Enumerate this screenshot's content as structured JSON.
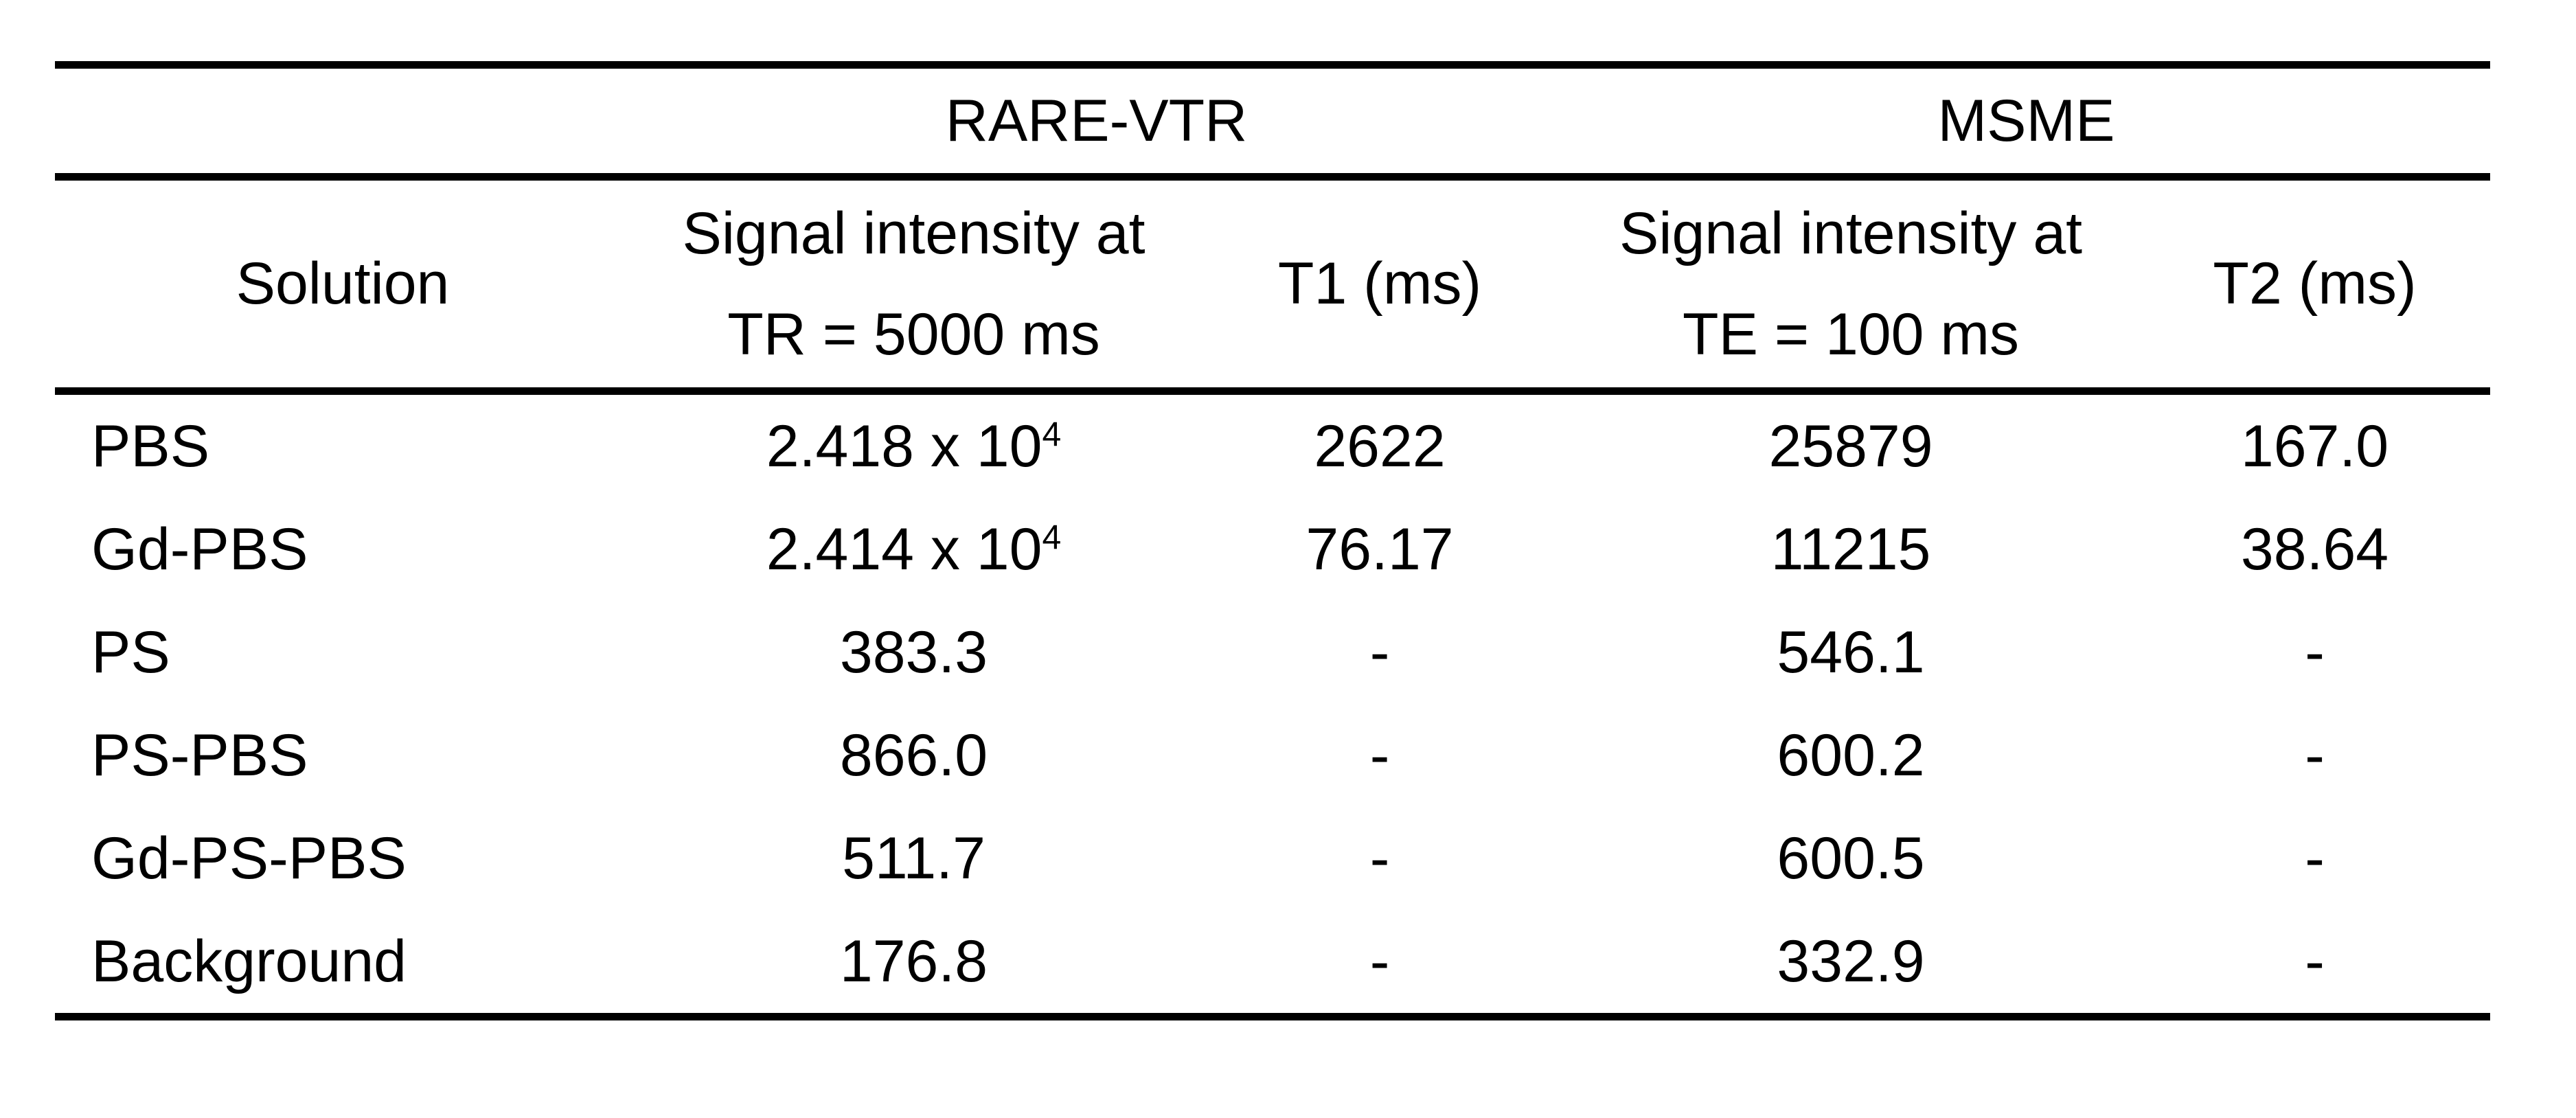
{
  "colors": {
    "text": "#000000",
    "rule": "#000000",
    "background": "#ffffff"
  },
  "header": {
    "group_rare": "RARE-VTR",
    "group_msme": "MSME",
    "col_solution": "Solution",
    "col_rare_signal_line1": "Signal intensity at",
    "col_rare_signal_line2": "TR = 5000 ms",
    "col_t1": "T1 (ms)",
    "col_msme_signal_line1": "Signal intensity at",
    "col_msme_signal_line2": "TE = 100 ms",
    "col_t2": "T2 (ms)"
  },
  "rows": [
    {
      "solution": "PBS",
      "rare_signal": {
        "base": "2.418 x 10",
        "exp": "4"
      },
      "t1": "2622",
      "msme_signal": {
        "base": "25879"
      },
      "t2": "167.0"
    },
    {
      "solution": "Gd-PBS",
      "rare_signal": {
        "base": "2.414 x 10",
        "exp": "4"
      },
      "t1": "76.17",
      "msme_signal": {
        "base": "11215"
      },
      "t2": "38.64"
    },
    {
      "solution": "PS",
      "rare_signal": {
        "base": "383.3"
      },
      "t1": "-",
      "msme_signal": {
        "base": "546.1"
      },
      "t2": "-"
    },
    {
      "solution": "PS-PBS",
      "rare_signal": {
        "base": "866.0"
      },
      "t1": "-",
      "msme_signal": {
        "base": "600.2"
      },
      "t2": "-"
    },
    {
      "solution": "Gd-PS-PBS",
      "rare_signal": {
        "base": "511.7"
      },
      "t1": "-",
      "msme_signal": {
        "base": "600.5"
      },
      "t2": "-"
    },
    {
      "solution": "Background",
      "rare_signal": {
        "base": "176.8"
      },
      "t1": "-",
      "msme_signal": {
        "base": "332.9"
      },
      "t2": "-"
    }
  ]
}
